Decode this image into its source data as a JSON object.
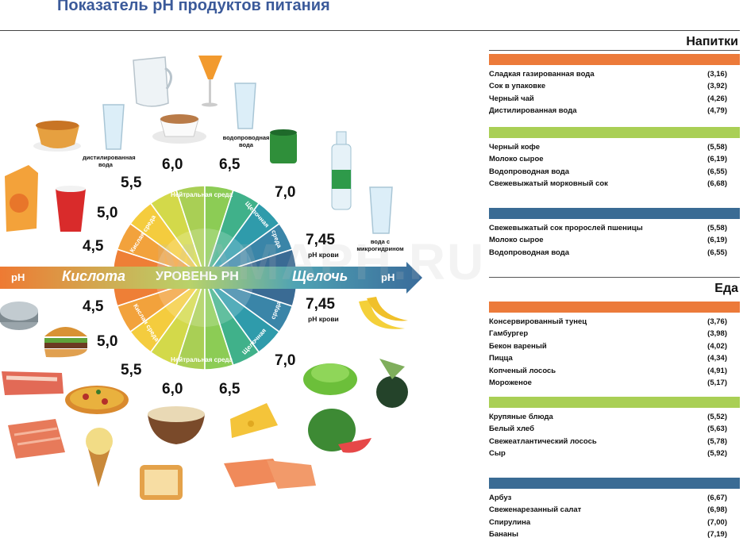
{
  "title": "Показатель pH продуктов питания",
  "watermark": "MAMAPH.RU",
  "wheel": {
    "axis_left": "pH",
    "axis_right": "pH",
    "acid_label": "Кислота",
    "center_label": "УРОВЕНЬ PH",
    "alkali_label": "Щелочь",
    "acid_env": "Кислая среда",
    "neutral_env": "Нейтральная среда",
    "alkaline_env": "Щелочная",
    "env_word": "среда",
    "values_top": [
      "4,5",
      "5,0",
      "5,5",
      "6,0",
      "6,5",
      "7,0",
      "7,45"
    ],
    "values_bottom": [
      "4,5",
      "5,0",
      "5,5",
      "6,0",
      "6,5",
      "7,0",
      "7,45"
    ],
    "blood_label": "pH крови",
    "distilled_water": "дистилированная вода",
    "tap_water": "водопроводная вода",
    "micro_water": "вода с микрогидрином"
  },
  "drinks": {
    "title": "Напитки",
    "groups": [
      {
        "color": "#ec7a3a",
        "items": [
          {
            "name": "Сладкая газированная вода",
            "ph": "(3,16)"
          },
          {
            "name": "Сок в упаковке",
            "ph": "(3,92)"
          },
          {
            "name": "Черный чай",
            "ph": "(4,26)"
          },
          {
            "name": "Дистилированная вода",
            "ph": "(4,79)"
          }
        ]
      },
      {
        "color": "#a9cf55",
        "items": [
          {
            "name": "Черный кофе",
            "ph": "(5,58)"
          },
          {
            "name": "Молоко сырое",
            "ph": "(6,19)"
          },
          {
            "name": "Водопроводная вода",
            "ph": "(6,55)"
          },
          {
            "name": "Свежевыжатый морковный сок",
            "ph": "(6,68)"
          }
        ]
      },
      {
        "color": "#3a6b94",
        "items": [
          {
            "name": "Свежевыжатый сок пророслей пшеницы",
            "ph": "(5,58)"
          },
          {
            "name": "Молоко сырое",
            "ph": "(6,19)"
          },
          {
            "name": "Водопроводная вода",
            "ph": "(6,55)"
          }
        ]
      }
    ]
  },
  "food": {
    "title": "Еда",
    "groups": [
      {
        "color": "#ec7a3a",
        "items": [
          {
            "name": "Консервированный тунец",
            "ph": "(3,76)"
          },
          {
            "name": "Гамбургер",
            "ph": "(3,98)"
          },
          {
            "name": "Бекон вареный",
            "ph": "(4,02)"
          },
          {
            "name": "Пицца",
            "ph": "(4,34)"
          },
          {
            "name": "Копченый лосось",
            "ph": "(4,91)"
          },
          {
            "name": "Мороженое",
            "ph": "(5,17)"
          }
        ]
      },
      {
        "color": "#a9cf55",
        "items": [
          {
            "name": "Крупяные блюда",
            "ph": "(5,52)"
          },
          {
            "name": "Белый хлеб",
            "ph": "(5,63)"
          },
          {
            "name": "Свежеатлантический лосось",
            "ph": "(5,78)"
          },
          {
            "name": "Сыр",
            "ph": "(5,92)"
          }
        ]
      },
      {
        "color": "#3a6b94",
        "items": [
          {
            "name": "Арбуз",
            "ph": "(6,67)"
          },
          {
            "name": "Свеженарезанный салат",
            "ph": "(6,98)"
          },
          {
            "name": "Спирулина",
            "ph": "(7,00)"
          },
          {
            "name": "Бананы",
            "ph": "(7,19)"
          }
        ]
      }
    ]
  }
}
